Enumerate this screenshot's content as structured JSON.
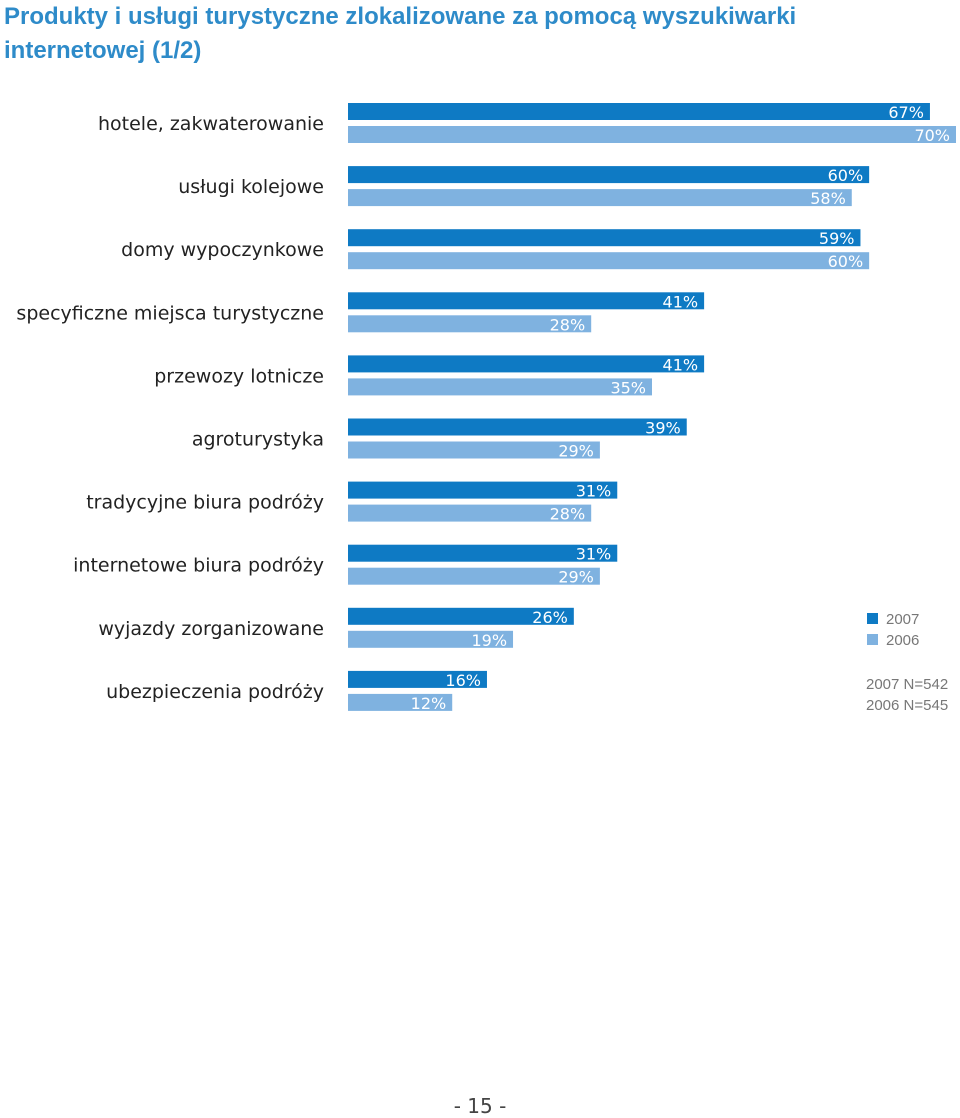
{
  "header": {
    "title": "Produkty i usługi turystyczne zlokalizowane za pomocą wyszukiwarki internetowej (1/2)"
  },
  "chart_data": {
    "type": "bar",
    "orientation": "horizontal",
    "categories": [
      "hotele, zakwaterowanie",
      "usługi kolejowe",
      "domy wypoczynkowe",
      "specyficzne miejsca turystyczne",
      "przewozy lotnicze",
      "agroturystyka",
      "tradycyjne biura podróży",
      "internetowe biura podróży",
      "wyjazdy zorganizowane",
      "ubezpieczenia podróży"
    ],
    "series": [
      {
        "name": "2007",
        "values": [
          67,
          60,
          59,
          41,
          41,
          39,
          31,
          31,
          26,
          16
        ],
        "color": "#0e7ac4"
      },
      {
        "name": "2006",
        "values": [
          70,
          58,
          60,
          28,
          35,
          29,
          28,
          29,
          19,
          12
        ],
        "color": "#7fb2e0"
      }
    ],
    "value_suffix": "%",
    "xlim": [
      0,
      70
    ],
    "grid": false,
    "legend_position": "right",
    "notes": [
      "2007 N=542",
      "2006 N=545"
    ]
  },
  "footer": {
    "page_number": "- 15 -"
  }
}
